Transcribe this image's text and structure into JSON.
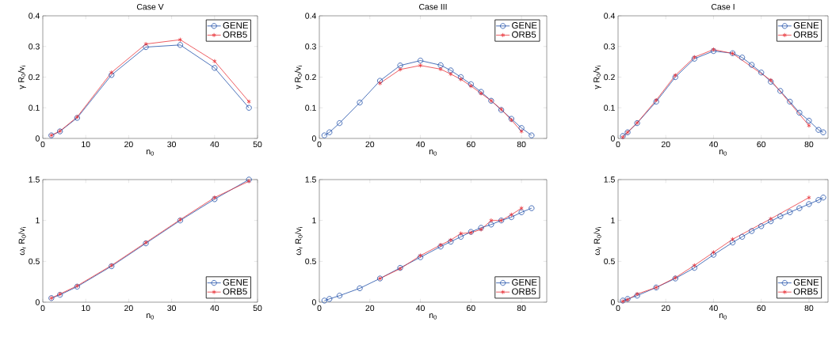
{
  "chart_data": [
    {
      "type": "line",
      "title": "Case V",
      "xlabel": "n$_{0}$",
      "ylabel": "γ R$_{0}$/v$_{i}$",
      "xlim": [
        0,
        50
      ],
      "xticks": [
        0,
        10,
        20,
        30,
        40,
        50
      ],
      "ylim": [
        0,
        0.4
      ],
      "yticks": [
        0,
        0.1,
        0.2,
        0.3,
        0.4
      ],
      "legend": "top right",
      "grid": false,
      "series": [
        {
          "name": "GENE",
          "color": "#1f4fa8",
          "marker": "circle",
          "x": [
            2,
            4,
            8,
            16,
            24,
            32,
            40,
            48
          ],
          "values": [
            0.01,
            0.023,
            0.067,
            0.207,
            0.298,
            0.305,
            0.23,
            0.1
          ]
        },
        {
          "name": "ORB5",
          "color": "#e8333a",
          "marker": "cross",
          "x": [
            2,
            4,
            8,
            16,
            24,
            32,
            40,
            48
          ],
          "values": [
            0.01,
            0.024,
            0.07,
            0.215,
            0.308,
            0.322,
            0.252,
            0.12
          ]
        }
      ]
    },
    {
      "type": "line",
      "title": "Case III",
      "xlabel": "n$_{0}$",
      "ylabel": "γ R$_{0}$/v$_{i}$",
      "xlim": [
        0,
        90
      ],
      "xticks": [
        0,
        20,
        40,
        60,
        80
      ],
      "ylim": [
        0,
        0.4
      ],
      "yticks": [
        0,
        0.1,
        0.2,
        0.3,
        0.4
      ],
      "legend": "top right",
      "grid": false,
      "series": [
        {
          "name": "GENE",
          "color": "#1f4fa8",
          "marker": "circle",
          "x": [
            2,
            4,
            8,
            16,
            24,
            32,
            40,
            48,
            52,
            56,
            60,
            64,
            68,
            72,
            76,
            80,
            84
          ],
          "values": [
            0.01,
            0.02,
            0.05,
            0.117,
            0.188,
            0.238,
            0.254,
            0.239,
            0.222,
            0.2,
            0.177,
            0.152,
            0.123,
            0.093,
            0.064,
            0.034,
            0.01
          ]
        },
        {
          "name": "ORB5",
          "color": "#e8333a",
          "marker": "cross",
          "x": [
            24,
            32,
            40,
            48,
            52,
            56,
            60,
            64,
            68,
            72,
            76,
            80
          ],
          "values": [
            0.18,
            0.225,
            0.238,
            0.226,
            0.21,
            0.193,
            0.171,
            0.147,
            0.123,
            0.095,
            0.06,
            0.023
          ]
        }
      ]
    },
    {
      "type": "line",
      "title": "Case I",
      "xlabel": "n$_{0}$",
      "ylabel": "γ R$_{0}$/v$_{i}$",
      "xlim": [
        0,
        88
      ],
      "xticks": [
        0,
        20,
        40,
        60,
        80
      ],
      "ylim": [
        0,
        0.4
      ],
      "yticks": [
        0,
        0.1,
        0.2,
        0.3,
        0.4
      ],
      "legend": "top right",
      "grid": false,
      "series": [
        {
          "name": "GENE",
          "color": "#1f4fa8",
          "marker": "circle",
          "x": [
            2,
            4,
            8,
            16,
            24,
            32,
            40,
            48,
            52,
            56,
            60,
            64,
            68,
            72,
            76,
            80,
            84,
            86
          ],
          "values": [
            0.008,
            0.02,
            0.05,
            0.12,
            0.2,
            0.26,
            0.285,
            0.278,
            0.264,
            0.24,
            0.215,
            0.185,
            0.155,
            0.12,
            0.084,
            0.058,
            0.028,
            0.02
          ]
        },
        {
          "name": "ORB5",
          "color": "#e8333a",
          "marker": "cross",
          "x": [
            2,
            4,
            8,
            16,
            24,
            32,
            40,
            48,
            64,
            80
          ],
          "values": [
            0.004,
            0.02,
            0.051,
            0.125,
            0.206,
            0.265,
            0.29,
            0.277,
            0.19,
            0.042
          ]
        }
      ]
    },
    {
      "type": "line",
      "xlabel": "n$_{0}$",
      "ylabel": "ω$_{r}$ R$_{0}$/v$_{i}$",
      "xlim": [
        0,
        50
      ],
      "xticks": [
        0,
        10,
        20,
        30,
        40,
        50
      ],
      "ylim": [
        0,
        1.5
      ],
      "yticks": [
        0,
        0.5,
        1,
        1.5
      ],
      "legend": "bottom right",
      "grid": false,
      "series": [
        {
          "name": "GENE",
          "color": "#1f4fa8",
          "marker": "circle",
          "x": [
            2,
            4,
            8,
            16,
            24,
            32,
            40,
            48
          ],
          "values": [
            0.05,
            0.09,
            0.19,
            0.44,
            0.72,
            1.0,
            1.26,
            1.5
          ]
        },
        {
          "name": "ORB5",
          "color": "#e8333a",
          "marker": "cross",
          "x": [
            2,
            4,
            8,
            16,
            24,
            32,
            40,
            48
          ],
          "values": [
            0.05,
            0.1,
            0.2,
            0.45,
            0.73,
            1.01,
            1.28,
            1.48
          ]
        }
      ]
    },
    {
      "type": "line",
      "xlabel": "n$_{0}$",
      "ylabel": "ω$_{r}$ R$_{0}$/v$_{i}$",
      "xlim": [
        0,
        90
      ],
      "xticks": [
        0,
        20,
        40,
        60,
        80
      ],
      "ylim": [
        0,
        1.5
      ],
      "yticks": [
        0,
        0.5,
        1,
        1.5
      ],
      "legend": "bottom right",
      "grid": false,
      "series": [
        {
          "name": "GENE",
          "color": "#1f4fa8",
          "marker": "circle",
          "x": [
            2,
            4,
            8,
            16,
            24,
            32,
            40,
            48,
            52,
            56,
            60,
            64,
            68,
            72,
            76,
            80,
            84
          ],
          "values": [
            0.02,
            0.04,
            0.08,
            0.17,
            0.29,
            0.42,
            0.55,
            0.68,
            0.74,
            0.8,
            0.86,
            0.91,
            0.95,
            1.0,
            1.04,
            1.1,
            1.15
          ]
        },
        {
          "name": "ORB5",
          "color": "#e8333a",
          "marker": "cross",
          "x": [
            24,
            32,
            40,
            48,
            52,
            56,
            60,
            64,
            68,
            72,
            76,
            80
          ],
          "values": [
            0.29,
            0.41,
            0.57,
            0.7,
            0.76,
            0.84,
            0.85,
            0.89,
            1.0,
            1.0,
            1.07,
            1.15
          ]
        }
      ]
    },
    {
      "type": "line",
      "xlabel": "n$_{0}$",
      "ylabel": "ω$_{r}$ R$_{0}$/v$_{i}$",
      "xlim": [
        0,
        88
      ],
      "xticks": [
        0,
        20,
        40,
        60,
        80
      ],
      "ylim": [
        0,
        1.5
      ],
      "yticks": [
        0,
        0.5,
        1,
        1.5
      ],
      "legend": "bottom right",
      "grid": false,
      "series": [
        {
          "name": "GENE",
          "color": "#1f4fa8",
          "marker": "circle",
          "x": [
            2,
            4,
            8,
            16,
            24,
            32,
            40,
            48,
            52,
            56,
            60,
            64,
            68,
            72,
            76,
            80,
            84,
            86
          ],
          "values": [
            0.02,
            0.04,
            0.08,
            0.18,
            0.29,
            0.42,
            0.58,
            0.73,
            0.8,
            0.87,
            0.93,
            0.99,
            1.05,
            1.1,
            1.15,
            1.2,
            1.25,
            1.28
          ]
        },
        {
          "name": "ORB5",
          "color": "#e8333a",
          "marker": "cross",
          "x": [
            2,
            4,
            8,
            16,
            24,
            32,
            40,
            48,
            64,
            80
          ],
          "values": [
            0.01,
            0.03,
            0.1,
            0.18,
            0.3,
            0.45,
            0.61,
            0.77,
            1.02,
            1.28
          ]
        }
      ]
    }
  ]
}
